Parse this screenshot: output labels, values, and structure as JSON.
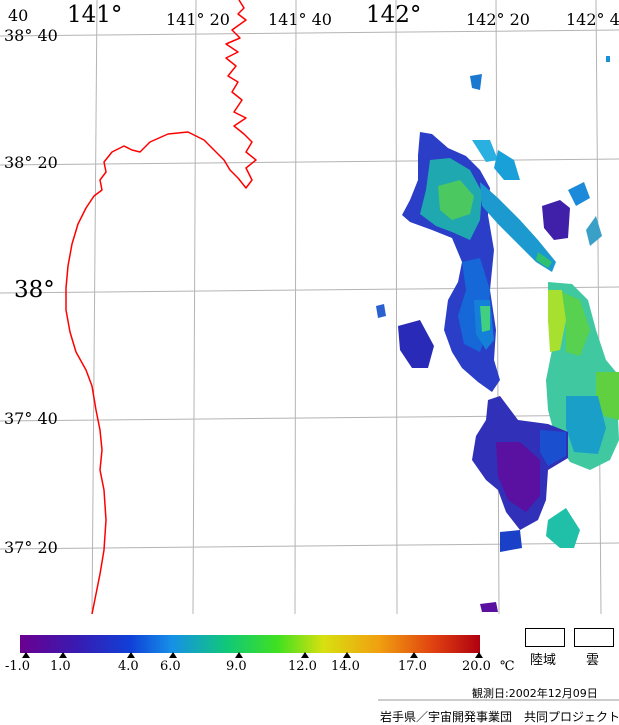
{
  "map": {
    "lon_labels": [
      {
        "text": "141°",
        "big": true
      },
      {
        "text": "141° 20",
        "big": false
      },
      {
        "text": "141° 40",
        "big": false
      },
      {
        "text": "142°",
        "big": true
      },
      {
        "text": "142° 20",
        "big": false
      },
      {
        "text": "142° 40",
        "big": false
      }
    ],
    "lat_labels": [
      {
        "text": "38° 40",
        "big": false
      },
      {
        "text": "38° 20",
        "big": false
      },
      {
        "text": "38°",
        "big": true
      },
      {
        "text": "37° 40",
        "big": false
      },
      {
        "text": "37° 20",
        "big": false
      }
    ],
    "corner_label": "40",
    "coastline_color": "#ff0000",
    "grid_color": "#b4b4b4"
  },
  "legend": {
    "ticks": [
      "-1.0",
      "1.0",
      "4.0",
      "6.0",
      "9.0",
      "12.0",
      "14.0",
      "17.0",
      "20.0"
    ],
    "unit": "℃",
    "land_label": "陸域",
    "cloud_label": "雲",
    "colors": [
      "#6a0090",
      "#3a1ab0",
      "#1040d8",
      "#1690e8",
      "#10c878",
      "#40e020",
      "#d8e010",
      "#f0a010",
      "#e04010",
      "#b00010"
    ]
  },
  "footer": {
    "observation_date": "観測日:2002年12月09日",
    "credit": "岩手県／宇宙開発事業団　共同プロジェクト"
  }
}
